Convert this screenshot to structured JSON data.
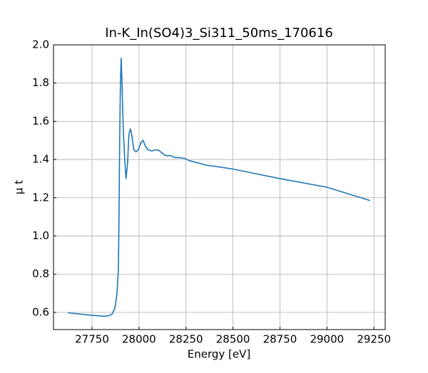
{
  "chart_data": {
    "type": "line",
    "title": "In-K_In(SO4)3_Si311_50ms_170616",
    "x_label": "Energy [eV]",
    "y_label": "μ t",
    "x": [
      27621,
      27715,
      27810,
      27837,
      27856,
      27871,
      27882,
      27890,
      27893,
      27897,
      27901,
      27905,
      27909,
      27916,
      27924,
      27931,
      27939,
      27946,
      27954,
      27961,
      27973,
      27984,
      27996,
      28011,
      28022,
      28034,
      28049,
      28068,
      28087,
      28102,
      28121,
      28143,
      28170,
      28193,
      28215,
      28246,
      28265,
      28322,
      28359,
      28400,
      28500,
      28600,
      28750,
      29000,
      29230
    ],
    "series": [
      {
        "color": "#1f77b4",
        "values": [
          0.598,
          0.588,
          0.58,
          0.582,
          0.59,
          0.62,
          0.69,
          0.82,
          1.04,
          1.49,
          1.79,
          1.93,
          1.82,
          1.56,
          1.4,
          1.3,
          1.38,
          1.53,
          1.56,
          1.53,
          1.45,
          1.44,
          1.45,
          1.49,
          1.5,
          1.47,
          1.45,
          1.445,
          1.45,
          1.45,
          1.435,
          1.42,
          1.42,
          1.41,
          1.41,
          1.405,
          1.395,
          1.38,
          1.37,
          1.365,
          1.35,
          1.33,
          1.3,
          1.255,
          1.185
        ]
      }
    ],
    "xlim": [
      27545,
      29310
    ],
    "ylim": [
      0.51,
      2.0
    ],
    "xticks": [
      27750,
      28000,
      28250,
      28500,
      28750,
      29000,
      29250
    ],
    "yticks": [
      0.6,
      0.8,
      {
        "value": 1.0,
        "label": "1.0"
      },
      1.2,
      1.4,
      1.6,
      1.8,
      {
        "value": 2.0,
        "label": "2.0"
      }
    ],
    "grid": true
  }
}
